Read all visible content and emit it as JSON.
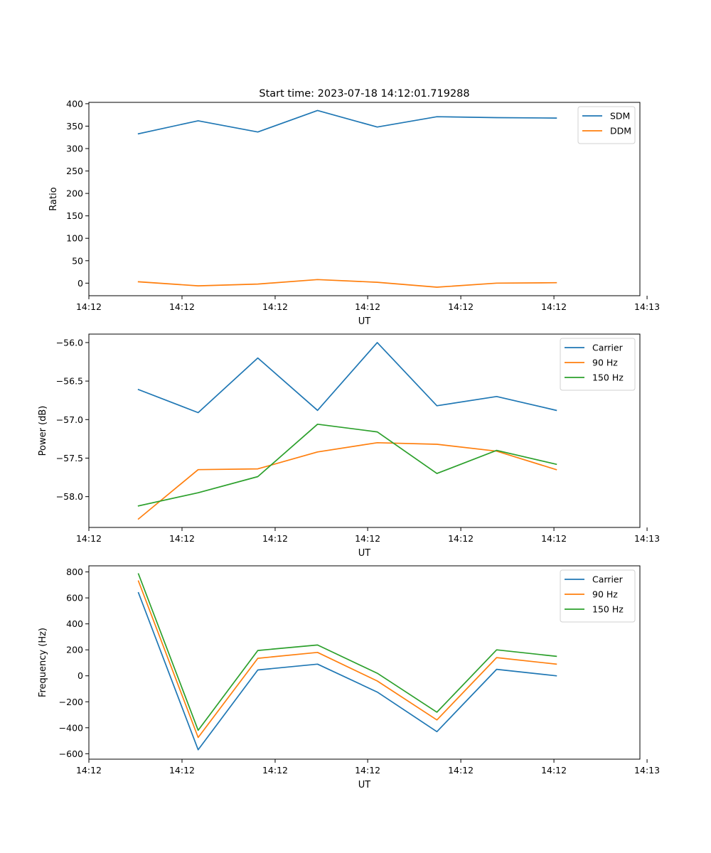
{
  "figure_title": "Start time: 2023-07-18 14:12:01.719288",
  "colors": {
    "blue": "#1f77b4",
    "orange": "#ff7f0e",
    "green": "#2ca02c"
  },
  "chart_data": [
    {
      "type": "line",
      "title": "Start time: 2023-07-18 14:12:01.719288",
      "xlabel": "UT",
      "ylabel": "Ratio",
      "x": [
        1,
        2,
        3,
        4,
        5,
        6,
        7,
        8
      ],
      "xlim": [
        0.17,
        9.4
      ],
      "xticks": [
        0.17,
        1.73,
        3.29,
        4.84,
        6.4,
        7.96,
        9.52
      ],
      "xtick_labels": [
        "14:12",
        "14:12",
        "14:12",
        "14:12",
        "14:12",
        "14:12",
        "14:13"
      ],
      "ylim": [
        -28,
        403
      ],
      "yticks": [
        0,
        50,
        100,
        150,
        200,
        250,
        300,
        350,
        400
      ],
      "ytick_labels": [
        "0",
        "50",
        "100",
        "150",
        "200",
        "250",
        "300",
        "350",
        "400"
      ],
      "legend_position": "top-right",
      "series": [
        {
          "name": "SDM",
          "color": "#1f77b4",
          "values": [
            333,
            362,
            337,
            385,
            348,
            371,
            369,
            368
          ]
        },
        {
          "name": "DDM",
          "color": "#ff7f0e",
          "values": [
            3,
            -6,
            -2,
            8,
            2,
            -9,
            0,
            1
          ]
        }
      ]
    },
    {
      "type": "line",
      "title": "",
      "xlabel": "UT",
      "ylabel": "Power (dB)",
      "x": [
        1,
        2,
        3,
        4,
        5,
        6,
        7,
        8
      ],
      "xlim": [
        0.17,
        9.4
      ],
      "xticks": [
        0.17,
        1.73,
        3.29,
        4.84,
        6.4,
        7.96,
        9.52
      ],
      "xtick_labels": [
        "14:12",
        "14:12",
        "14:12",
        "14:12",
        "14:12",
        "14:12",
        "14:13"
      ],
      "ylim": [
        -58.4,
        -55.89
      ],
      "yticks": [
        -58.0,
        -57.5,
        -57.0,
        -56.5,
        -56.0
      ],
      "ytick_labels": [
        "−58.0",
        "−57.5",
        "−57.0",
        "−56.5",
        "−56.0"
      ],
      "legend_position": "top-right",
      "series": [
        {
          "name": "Carrier",
          "color": "#1f77b4",
          "values": [
            -56.61,
            -56.91,
            -56.2,
            -56.88,
            -56.0,
            -56.82,
            -56.7,
            -56.88
          ]
        },
        {
          "name": "90 Hz",
          "color": "#ff7f0e",
          "values": [
            -58.29,
            -57.65,
            -57.64,
            -57.42,
            -57.3,
            -57.32,
            -57.41,
            -57.65
          ]
        },
        {
          "name": "150 Hz",
          "color": "#2ca02c",
          "values": [
            -58.12,
            -57.95,
            -57.74,
            -57.06,
            -57.16,
            -57.7,
            -57.4,
            -57.58
          ]
        }
      ]
    },
    {
      "type": "line",
      "title": "",
      "xlabel": "UT",
      "ylabel": "Frequency (Hz)",
      "x": [
        1,
        2,
        3,
        4,
        5,
        6,
        7,
        8
      ],
      "xlim": [
        0.17,
        9.4
      ],
      "xticks": [
        0.17,
        1.73,
        3.29,
        4.84,
        6.4,
        7.96,
        9.52
      ],
      "xtick_labels": [
        "14:12",
        "14:12",
        "14:12",
        "14:12",
        "14:12",
        "14:12",
        "14:13"
      ],
      "ylim": [
        -642,
        847
      ],
      "yticks": [
        -600,
        -400,
        -200,
        0,
        200,
        400,
        600,
        800
      ],
      "ytick_labels": [
        "−600",
        "−400",
        "−200",
        "0",
        "200",
        "400",
        "600",
        "800"
      ],
      "legend_position": "top-right",
      "series": [
        {
          "name": "Carrier",
          "color": "#1f77b4",
          "values": [
            640,
            -570,
            45,
            90,
            -125,
            -430,
            50,
            0
          ]
        },
        {
          "name": "90 Hz",
          "color": "#ff7f0e",
          "values": [
            730,
            -475,
            135,
            180,
            -40,
            -340,
            140,
            90
          ]
        },
        {
          "name": "150 Hz",
          "color": "#2ca02c",
          "values": [
            785,
            -420,
            195,
            237,
            20,
            -280,
            200,
            150
          ]
        }
      ]
    }
  ]
}
